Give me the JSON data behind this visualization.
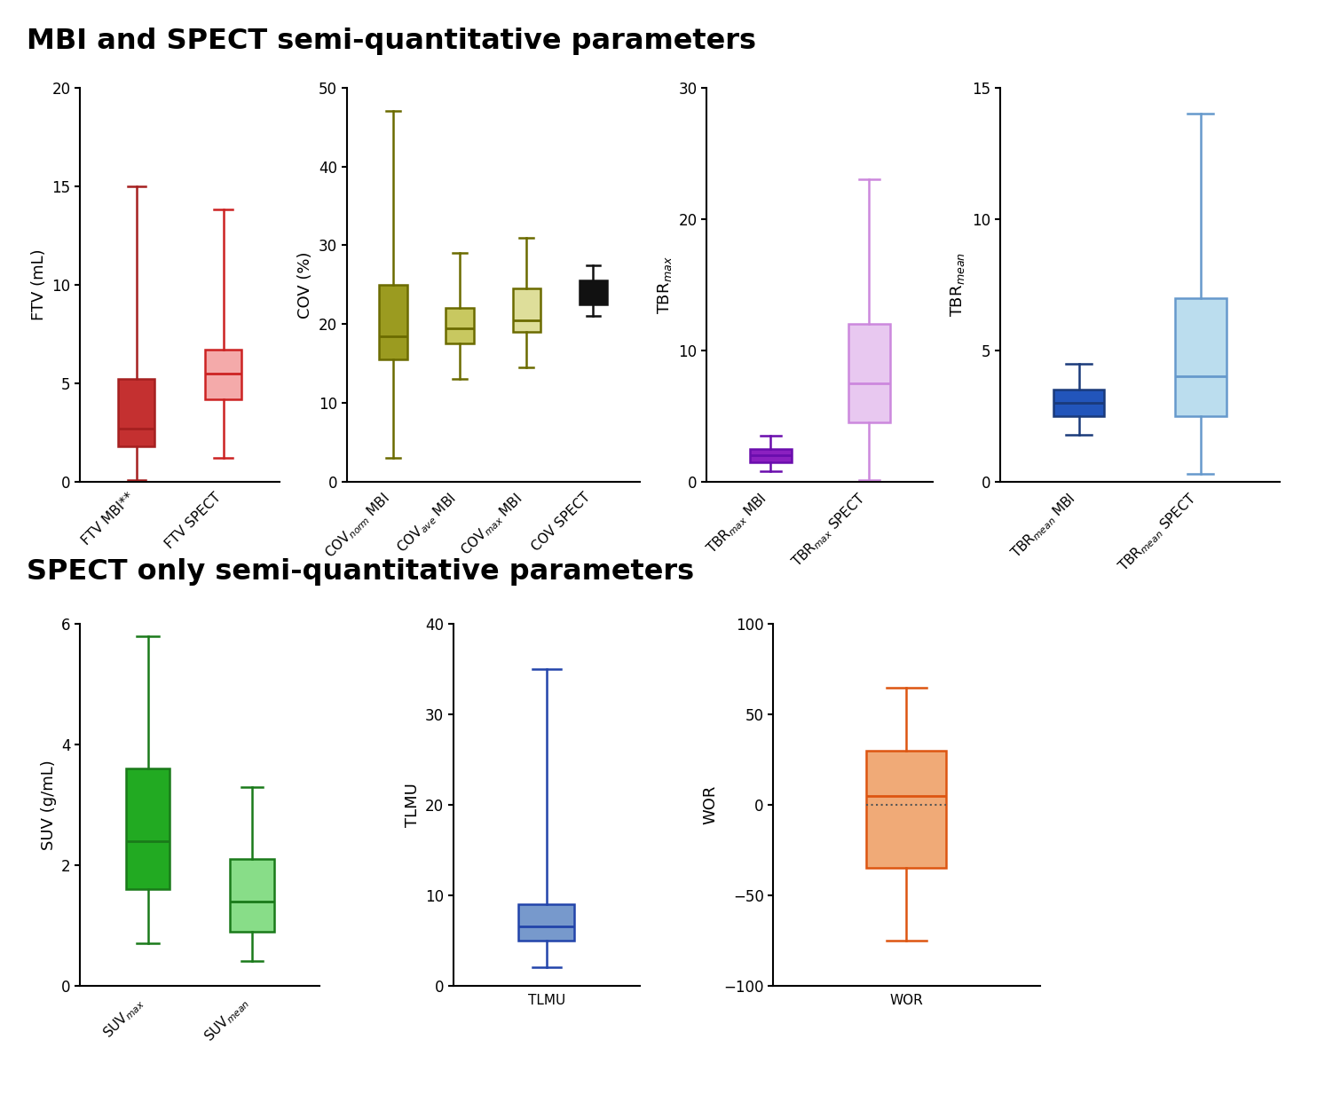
{
  "title_top": "MBI and SPECT semi-quantitative parameters",
  "title_bottom": "SPECT only semi-quantitative parameters",
  "background_color": "#ffffff",
  "ftv": {
    "ylabel": "FTV (mL)",
    "ylim": [
      0,
      20
    ],
    "yticks": [
      0,
      5,
      10,
      15,
      20
    ],
    "boxes": [
      {
        "label": "FTV MBI**",
        "whislo": 0.1,
        "q1": 1.8,
        "med": 2.7,
        "q3": 5.2,
        "whishi": 15.0,
        "color": "#A52020",
        "facecolor": "#C43030",
        "alpha": 1.0
      },
      {
        "label": "FTV SPECT",
        "whislo": 1.2,
        "q1": 4.2,
        "med": 5.5,
        "q3": 6.7,
        "whishi": 13.8,
        "color": "#CC2222",
        "facecolor": "#F4AAAA",
        "alpha": 1.0
      }
    ]
  },
  "cov": {
    "ylabel": "COV (%)",
    "ylim": [
      0,
      50
    ],
    "yticks": [
      0,
      10,
      20,
      30,
      40,
      50
    ],
    "boxes": [
      {
        "label": "COV$_{norm}$ MBI",
        "whislo": 3.0,
        "q1": 15.5,
        "med": 18.5,
        "q3": 25.0,
        "whishi": 47.0,
        "color": "#6B6B00",
        "facecolor": "#9B9B20",
        "alpha": 1.0
      },
      {
        "label": "COV$_{ave}$ MBI",
        "whislo": 13.0,
        "q1": 17.5,
        "med": 19.5,
        "q3": 22.0,
        "whishi": 29.0,
        "color": "#6B6B00",
        "facecolor": "#C8C860",
        "alpha": 1.0
      },
      {
        "label": "COV$_{max}$ MBI",
        "whislo": 14.5,
        "q1": 19.0,
        "med": 20.5,
        "q3": 24.5,
        "whishi": 31.0,
        "color": "#6B6B00",
        "facecolor": "#DEDE9A",
        "alpha": 1.0
      },
      {
        "label": "COV SPECT",
        "whislo": 21.0,
        "q1": 22.5,
        "med": 23.5,
        "q3": 25.5,
        "whishi": 27.5,
        "color": "#111111",
        "facecolor": "#111111",
        "alpha": 1.0
      }
    ]
  },
  "tbrmax": {
    "ylabel": "TBR$_{max}$",
    "ylim": [
      0,
      30
    ],
    "yticks": [
      0,
      10,
      20,
      30
    ],
    "boxes": [
      {
        "label": "TBR$_{max}$ MBI",
        "whislo": 0.8,
        "q1": 1.5,
        "med": 2.0,
        "q3": 2.5,
        "whishi": 3.5,
        "color": "#6A0DAD",
        "facecolor": "#8B20C0",
        "alpha": 1.0
      },
      {
        "label": "TBR$_{max}$ SPECT",
        "whislo": 0.1,
        "q1": 4.5,
        "med": 7.5,
        "q3": 12.0,
        "whishi": 23.0,
        "color": "#CC88DD",
        "facecolor": "#E8C8F0",
        "alpha": 1.0
      }
    ]
  },
  "tbrmean": {
    "ylabel": "TBR$_{mean}$",
    "ylim": [
      0,
      15
    ],
    "yticks": [
      0,
      5,
      10,
      15
    ],
    "boxes": [
      {
        "label": "TBR$_{mean}$ MBI",
        "whislo": 1.8,
        "q1": 2.5,
        "med": 3.0,
        "q3": 3.5,
        "whishi": 4.5,
        "color": "#1A3A7A",
        "facecolor": "#2255BB",
        "alpha": 1.0
      },
      {
        "label": "TBR$_{mean}$ SPECT",
        "whislo": 0.3,
        "q1": 2.5,
        "med": 4.0,
        "q3": 7.0,
        "whishi": 14.0,
        "color": "#6699CC",
        "facecolor": "#BBDDEE",
        "alpha": 1.0
      }
    ]
  },
  "suv": {
    "ylabel": "SUV (g/mL)",
    "ylim": [
      0,
      6
    ],
    "yticks": [
      0,
      2,
      4,
      6
    ],
    "boxes": [
      {
        "label": "SUV$_{max}$",
        "whislo": 0.7,
        "q1": 1.6,
        "med": 2.4,
        "q3": 3.6,
        "whishi": 5.8,
        "color": "#1A7A1A",
        "facecolor": "#22AA22",
        "alpha": 1.0
      },
      {
        "label": "SUV$_{mean}$",
        "whislo": 0.4,
        "q1": 0.9,
        "med": 1.4,
        "q3": 2.1,
        "whishi": 3.3,
        "color": "#1A7A1A",
        "facecolor": "#88DD88",
        "alpha": 1.0
      }
    ]
  },
  "tlmu": {
    "ylabel": "TLMU",
    "ylim": [
      0,
      40
    ],
    "yticks": [
      0,
      10,
      20,
      30,
      40
    ],
    "boxes": [
      {
        "label": "TLMU",
        "whislo": 2.0,
        "q1": 5.0,
        "med": 6.5,
        "q3": 9.0,
        "whishi": 35.0,
        "color": "#2244AA",
        "facecolor": "#7799CC",
        "alpha": 1.0
      }
    ]
  },
  "wor": {
    "ylabel": "WOR",
    "ylim": [
      -100,
      100
    ],
    "yticks": [
      -100,
      -50,
      0,
      50,
      100
    ],
    "boxes": [
      {
        "label": "WOR",
        "whislo": -75.0,
        "q1": -35.0,
        "med": 5.0,
        "q3": 30.0,
        "whishi": 65.0,
        "color": "#DD5511",
        "facecolor": "#F0AA77",
        "alpha": 1.0,
        "dotted_at": 0.0
      }
    ]
  }
}
